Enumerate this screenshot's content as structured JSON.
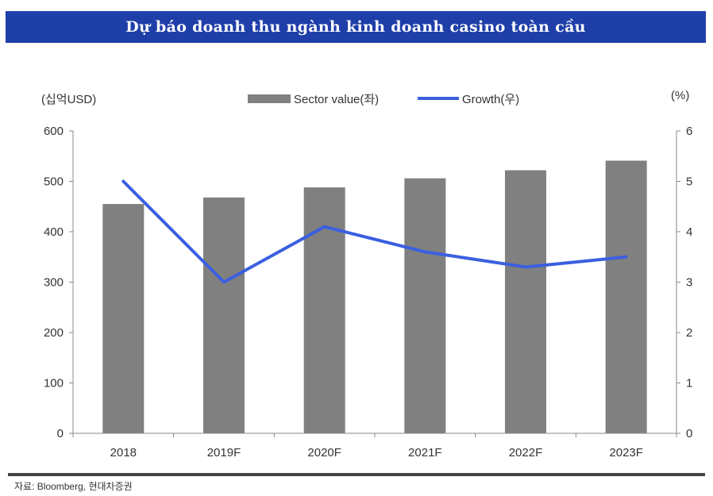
{
  "header": {
    "title": "Dự báo doanh thu ngành kinh doanh casino toàn cầu"
  },
  "chart_data": {
    "type": "bar",
    "categories": [
      "2018",
      "2019F",
      "2020F",
      "2021F",
      "2022F",
      "2023F"
    ],
    "series": [
      {
        "name": "Sector value(좌)",
        "kind": "bar",
        "axis": "left",
        "color": "#808080",
        "values": [
          455,
          468,
          488,
          506,
          522,
          541
        ]
      },
      {
        "name": "Growth(우)",
        "kind": "line",
        "axis": "right",
        "color": "#3a5fe0",
        "values": [
          5.0,
          3.0,
          4.1,
          3.6,
          3.3,
          3.5
        ]
      }
    ],
    "ylabel_left": "(십억USD)",
    "ylabel_right": "(%)",
    "ylim_left": [
      0,
      600
    ],
    "yticks_left": [
      "0",
      "100",
      "200",
      "300",
      "400",
      "500",
      "600"
    ],
    "ylim_right": [
      0,
      6
    ],
    "yticks_right": [
      "0",
      "1",
      "2",
      "3",
      "4",
      "5",
      "6"
    ],
    "grid": false,
    "legend": "top-center"
  },
  "footer": {
    "source": "자료: Bloomberg, 현대차증권"
  }
}
